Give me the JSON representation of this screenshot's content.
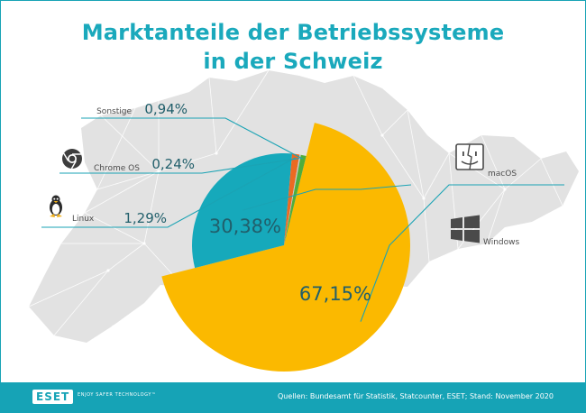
{
  "header": {
    "title_line1": "Marktanteile der Betriebssysteme",
    "title_line2": "in der Schweiz"
  },
  "chart_data": {
    "type": "pie",
    "categories": [
      "Windows",
      "macOS",
      "Linux",
      "Chrome OS",
      "Sonstige"
    ],
    "values": [
      67.15,
      30.38,
      1.29,
      0.24,
      0.94
    ],
    "labels": [
      "67,15",
      "30,38",
      "1,29",
      "0,24",
      "0,94"
    ],
    "unit": "%",
    "colors": [
      "#fbb900",
      "#16a9bb",
      "#eb6a22",
      "#c9c9c9",
      "#4fad3c"
    ],
    "icons": [
      "windows-icon",
      "finder-icon",
      "tux-icon",
      "chrome-icon",
      ""
    ],
    "legend": "none"
  },
  "footer": {
    "logo": "ESET",
    "tagline": "ENJOY SAFER TECHNOLOGY™",
    "sources": "Quellen: Bundesamt für Statistik, Statcounter, ESET; Stand: November 2020"
  }
}
